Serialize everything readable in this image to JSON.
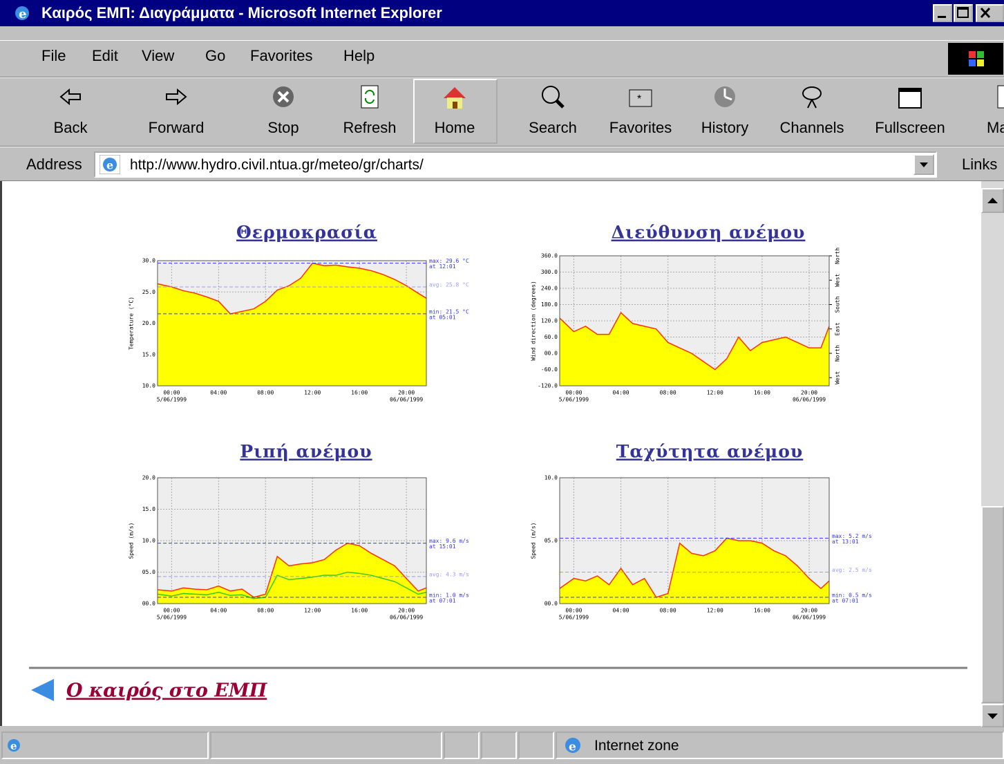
{
  "window": {
    "title": "Καιρός ΕΜΠ: Διαγράμματα - Microsoft Internet Explorer"
  },
  "menu": [
    "File",
    "Edit",
    "View",
    "Go",
    "Favorites",
    "Help"
  ],
  "toolbar": [
    "Back",
    "Forward",
    "Stop",
    "Refresh",
    "Home",
    "Search",
    "Favorites",
    "History",
    "Channels",
    "Fullscreen",
    "Ma"
  ],
  "address": {
    "label": "Address",
    "url": "http://www.hydro.civil.ntua.gr/meteo/gr/charts/",
    "links": "Links"
  },
  "chart_data": [
    {
      "type": "area",
      "title": "Θερμοκρασία",
      "y_label": "Temperature (°C)",
      "x": [
        -1.2,
        0,
        1,
        2,
        3,
        4,
        5,
        6,
        7,
        8,
        9,
        10,
        11,
        12,
        13,
        14,
        15,
        16,
        17,
        18,
        19,
        20,
        21,
        21.7
      ],
      "series": [
        {
          "color": "#ff3300",
          "fill": "#ffff00",
          "values": [
            26.3,
            25.8,
            25.2,
            24.8,
            24.2,
            23.5,
            21.5,
            21.9,
            22.3,
            23.5,
            25.3,
            26.0,
            27.2,
            29.6,
            29.2,
            29.3,
            29.0,
            28.8,
            28.4,
            27.8,
            27.0,
            26.0,
            24.8,
            24.0
          ]
        }
      ],
      "xlim": [
        -1.2,
        21.7
      ],
      "ylim": [
        10,
        30
      ],
      "xticks": [
        {
          "value": 0,
          "label": "00:00"
        },
        {
          "value": 4,
          "label": "04:00"
        },
        {
          "value": 8,
          "label": "08:00"
        },
        {
          "value": 12,
          "label": "12:00"
        },
        {
          "value": 16,
          "label": "16:00"
        },
        {
          "value": 20,
          "label": "20:00"
        }
      ],
      "date_ticks": [
        {
          "value": 0,
          "label": "5/06/1999"
        },
        {
          "value": 20,
          "label": "06/06/1999"
        }
      ],
      "yticks": [
        {
          "value": 10,
          "label": "10.0"
        },
        {
          "value": 15,
          "label": "15.0"
        },
        {
          "value": 20,
          "label": "20.0"
        },
        {
          "value": 25,
          "label": "25.0"
        },
        {
          "value": 30,
          "label": "30.0"
        }
      ],
      "ref_lines": [
        {
          "value": 29.6,
          "label": "max: 29.6 °C",
          "sublabel": "at 12:01",
          "color": "#3333ff"
        },
        {
          "value": 25.8,
          "label": "avg: 25.8 °C",
          "color": "#9999ff"
        },
        {
          "value": 21.5,
          "label": "min: 21.5 °C",
          "sublabel": "at 05:01",
          "color": "#3333ff"
        }
      ],
      "grid": true
    },
    {
      "type": "area",
      "title": "Διεύθυνση ανέμου",
      "y_label": "Wind direction (degrees)",
      "x": [
        -1.2,
        0,
        1,
        2,
        3,
        4,
        5,
        6,
        7,
        8,
        9,
        10,
        11,
        12,
        13,
        14,
        15,
        16,
        17,
        18,
        19,
        20,
        21,
        21.7
      ],
      "series": [
        {
          "color": "#ff3300",
          "fill": "#ffff00",
          "values": [
            130,
            80,
            100,
            70,
            70,
            150,
            110,
            100,
            90,
            40,
            20,
            0,
            -30,
            -60,
            -20,
            60,
            10,
            40,
            50,
            60,
            40,
            20,
            20,
            100
          ]
        }
      ],
      "xlim": [
        -1.2,
        21.7
      ],
      "ylim": [
        -120,
        360
      ],
      "xticks": [
        {
          "value": 0,
          "label": "00:00"
        },
        {
          "value": 4,
          "label": "04:00"
        },
        {
          "value": 8,
          "label": "08:00"
        },
        {
          "value": 12,
          "label": "12:00"
        },
        {
          "value": 16,
          "label": "16:00"
        },
        {
          "value": 20,
          "label": "20:00"
        }
      ],
      "date_ticks": [
        {
          "value": 0,
          "label": "5/06/1999"
        },
        {
          "value": 20,
          "label": "06/06/1999"
        }
      ],
      "yticks": [
        {
          "value": -120,
          "label": "-120.0"
        },
        {
          "value": -60,
          "label": "-60.0"
        },
        {
          "value": 0,
          "label": "00.0"
        },
        {
          "value": 60,
          "label": "60.0"
        },
        {
          "value": 120,
          "label": "120.0"
        },
        {
          "value": 180,
          "label": "180.0"
        },
        {
          "value": 240,
          "label": "240.0"
        },
        {
          "value": 300,
          "label": "300.0"
        },
        {
          "value": 360,
          "label": "360.0"
        }
      ],
      "y2lim": [
        -120,
        360
      ],
      "y2ticks": [
        {
          "value": -90,
          "label": "West"
        },
        {
          "value": 0,
          "label": "North"
        },
        {
          "value": 90,
          "label": "East"
        },
        {
          "value": 180,
          "label": "South"
        },
        {
          "value": 270,
          "label": "West"
        },
        {
          "value": 360,
          "label": "North"
        }
      ],
      "grid": true
    },
    {
      "type": "area",
      "title": "Ριπή ανέμου",
      "y_label": "Speed (m/s)",
      "x": [
        -1.2,
        0,
        1,
        2,
        3,
        4,
        5,
        6,
        7,
        8,
        9,
        10,
        11,
        12,
        13,
        14,
        15,
        16,
        17,
        18,
        19,
        20,
        21,
        21.7
      ],
      "series": [
        {
          "color": "#ff3300",
          "fill": "#ffff00",
          "values": [
            2.2,
            2.0,
            2.5,
            2.3,
            2.2,
            2.8,
            2.0,
            2.3,
            1.0,
            1.5,
            7.5,
            6.0,
            6.3,
            6.5,
            7.0,
            8.5,
            9.6,
            9.2,
            8.0,
            7.0,
            6.0,
            4.0,
            2.0,
            2.5
          ]
        },
        {
          "color": "#33cc00",
          "values": [
            1.5,
            1.2,
            1.6,
            1.5,
            1.4,
            1.8,
            1.3,
            1.4,
            0.8,
            1.0,
            4.5,
            3.8,
            4.0,
            4.2,
            4.5,
            4.5,
            5.0,
            4.8,
            4.5,
            4.0,
            3.5,
            2.5,
            1.5,
            1.8
          ]
        }
      ],
      "xlim": [
        -1.2,
        21.7
      ],
      "ylim": [
        0,
        20
      ],
      "xticks": [
        {
          "value": 0,
          "label": "00:00"
        },
        {
          "value": 4,
          "label": "04:00"
        },
        {
          "value": 8,
          "label": "08:00"
        },
        {
          "value": 12,
          "label": "12:00"
        },
        {
          "value": 16,
          "label": "16:00"
        },
        {
          "value": 20,
          "label": "20:00"
        }
      ],
      "date_ticks": [
        {
          "value": 0,
          "label": "5/06/1999"
        },
        {
          "value": 20,
          "label": "06/06/1999"
        }
      ],
      "yticks": [
        {
          "value": 0,
          "label": "00.0"
        },
        {
          "value": 5,
          "label": "05.0"
        },
        {
          "value": 10,
          "label": "10.0"
        },
        {
          "value": 15,
          "label": "15.0"
        },
        {
          "value": 20,
          "label": "20.0"
        }
      ],
      "ref_lines": [
        {
          "value": 9.6,
          "label": "max: 9.6 m/s",
          "sublabel": "at 15:01",
          "color": "#3333ff"
        },
        {
          "value": 4.3,
          "label": "avg: 4.3 m/s",
          "color": "#9999ff"
        },
        {
          "value": 1.0,
          "label": "min: 1.0 m/s",
          "sublabel": "at 07:01",
          "color": "#3333ff"
        }
      ],
      "grid": true
    },
    {
      "type": "area",
      "title": "Ταχύτητα ανέμου",
      "y_label": "Speed (m/s)",
      "x": [
        -1.2,
        0,
        1,
        2,
        3,
        4,
        5,
        6,
        7,
        8,
        9,
        10,
        11,
        12,
        13,
        14,
        15,
        16,
        17,
        18,
        19,
        20,
        21,
        21.7
      ],
      "series": [
        {
          "color": "#ff3300",
          "fill": "#ffff00",
          "values": [
            1.2,
            2.0,
            1.8,
            2.2,
            1.5,
            2.8,
            1.5,
            2.0,
            0.5,
            0.8,
            4.8,
            4.0,
            3.8,
            4.2,
            5.2,
            5.0,
            5.0,
            4.8,
            4.2,
            3.8,
            3.0,
            2.0,
            1.2,
            1.8
          ]
        }
      ],
      "xlim": [
        -1.2,
        21.7
      ],
      "ylim": [
        0,
        10
      ],
      "xticks": [
        {
          "value": 0,
          "label": "00:00"
        },
        {
          "value": 4,
          "label": "04:00"
        },
        {
          "value": 8,
          "label": "08:00"
        },
        {
          "value": 12,
          "label": "12:00"
        },
        {
          "value": 16,
          "label": "16:00"
        },
        {
          "value": 20,
          "label": "20:00"
        }
      ],
      "date_ticks": [
        {
          "value": 0,
          "label": "5/06/1999"
        },
        {
          "value": 20,
          "label": "06/06/1999"
        }
      ],
      "yticks": [
        {
          "value": 0,
          "label": "00.0"
        },
        {
          "value": 5,
          "label": "05.0"
        },
        {
          "value": 10,
          "label": "10.0"
        }
      ],
      "ref_lines": [
        {
          "value": 5.2,
          "label": "max: 5.2 m/s",
          "sublabel": "at 13:01",
          "color": "#3333ff"
        },
        {
          "value": 2.5,
          "label": "avg: 2.5 m/s",
          "color": "#9999ff"
        },
        {
          "value": 0.5,
          "label": "min: 0.5 m/s",
          "sublabel": "at 07:01",
          "color": "#3333ff"
        }
      ],
      "grid": true
    }
  ],
  "footer_link": "Ο καιρός στο ΕΜΠ",
  "status": {
    "zone": "Internet zone"
  }
}
